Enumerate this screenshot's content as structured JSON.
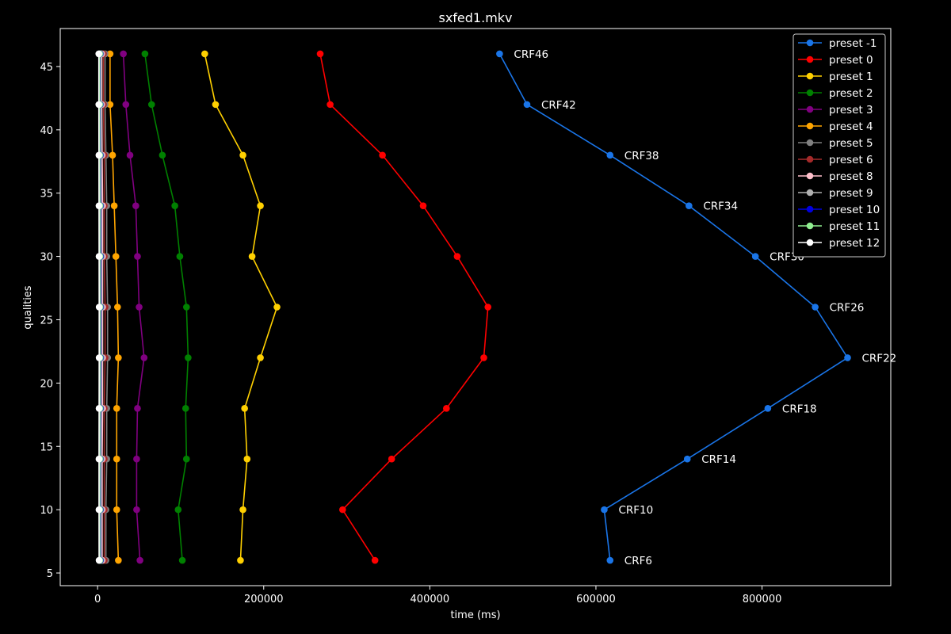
{
  "chart_data": {
    "type": "line",
    "title": "sxfed1.mkv",
    "xlabel": "time (ms)",
    "ylabel": "qualities",
    "xlim": [
      -45000,
      955000
    ],
    "ylim": [
      4,
      48
    ],
    "xticks": [
      0,
      200000,
      400000,
      600000,
      800000
    ],
    "yticks": [
      5,
      10,
      15,
      20,
      25,
      30,
      35,
      40,
      45
    ],
    "grid": false,
    "legend_position": "top-right",
    "y": [
      46,
      42,
      38,
      34,
      30,
      26,
      22,
      18,
      14,
      10,
      6
    ],
    "annotations": [
      {
        "text": "CRF46",
        "series": "preset -1",
        "y": 46
      },
      {
        "text": "CRF42",
        "series": "preset -1",
        "y": 42
      },
      {
        "text": "CRF38",
        "series": "preset -1",
        "y": 38
      },
      {
        "text": "CRF34",
        "series": "preset -1",
        "y": 34
      },
      {
        "text": "CRF30",
        "series": "preset -1",
        "y": 30
      },
      {
        "text": "CRF26",
        "series": "preset -1",
        "y": 26
      },
      {
        "text": "CRF22",
        "series": "preset -1",
        "y": 22
      },
      {
        "text": "CRF18",
        "series": "preset -1",
        "y": 18
      },
      {
        "text": "CRF14",
        "series": "preset -1",
        "y": 14
      },
      {
        "text": "CRF10",
        "series": "preset -1",
        "y": 10
      },
      {
        "text": "CRF6",
        "series": "preset -1",
        "y": 6
      }
    ],
    "series": [
      {
        "name": "preset -1",
        "color": "#1a75e8",
        "x": [
          484000,
          517000,
          617000,
          712000,
          792000,
          864000,
          903000,
          807000,
          710000,
          610000,
          617000
        ]
      },
      {
        "name": "preset 0",
        "color": "#ff0000",
        "x": [
          268000,
          280000,
          343000,
          392000,
          433000,
          470000,
          465000,
          420000,
          354000,
          295000,
          334000
        ]
      },
      {
        "name": "preset 1",
        "color": "#ffd000",
        "x": [
          129000,
          142000,
          175000,
          196000,
          186000,
          216000,
          196000,
          177000,
          180000,
          175000,
          172000
        ]
      },
      {
        "name": "preset 2",
        "color": "#008000",
        "x": [
          57000,
          65000,
          78000,
          93000,
          99000,
          107000,
          109000,
          106000,
          107000,
          97000,
          102000
        ]
      },
      {
        "name": "preset 3",
        "color": "#800080",
        "x": [
          31000,
          34000,
          39000,
          46000,
          48000,
          50000,
          56000,
          48000,
          47000,
          47000,
          51000
        ]
      },
      {
        "name": "preset 4",
        "color": "#ffa500",
        "x": [
          15000,
          15000,
          18000,
          20000,
          22000,
          24000,
          25000,
          23000,
          23000,
          23000,
          25000
        ]
      },
      {
        "name": "preset 5",
        "color": "#808080",
        "x": [
          9000,
          9000,
          10000,
          11000,
          11000,
          12000,
          12000,
          11000,
          11000,
          10000,
          10000
        ]
      },
      {
        "name": "preset 6",
        "color": "#a52a2a",
        "x": [
          7000,
          7000,
          8000,
          8000,
          8000,
          9000,
          9000,
          8000,
          8000,
          8000,
          8000
        ]
      },
      {
        "name": "preset 8",
        "color": "#ffc0cb",
        "x": [
          5000,
          5000,
          5500,
          6000,
          6000,
          6000,
          6000,
          6000,
          5500,
          5500,
          5500
        ]
      },
      {
        "name": "preset 9",
        "color": "#b0b0b0",
        "x": [
          4000,
          4000,
          4500,
          4500,
          5000,
          5000,
          5000,
          4500,
          4500,
          4500,
          4500
        ]
      },
      {
        "name": "preset 10",
        "color": "#0000e0",
        "x": [
          3000,
          3000,
          3200,
          3400,
          3500,
          3500,
          3500,
          3400,
          3200,
          3200,
          3300
        ]
      },
      {
        "name": "preset 11",
        "color": "#90ee90",
        "x": [
          2500,
          2500,
          2600,
          2800,
          2800,
          2900,
          2900,
          2800,
          2700,
          2600,
          2700
        ]
      },
      {
        "name": "preset 12",
        "color": "#ffffff",
        "x": [
          1500,
          1500,
          1600,
          1700,
          1800,
          1900,
          1900,
          1800,
          1700,
          1700,
          1800
        ]
      }
    ]
  }
}
